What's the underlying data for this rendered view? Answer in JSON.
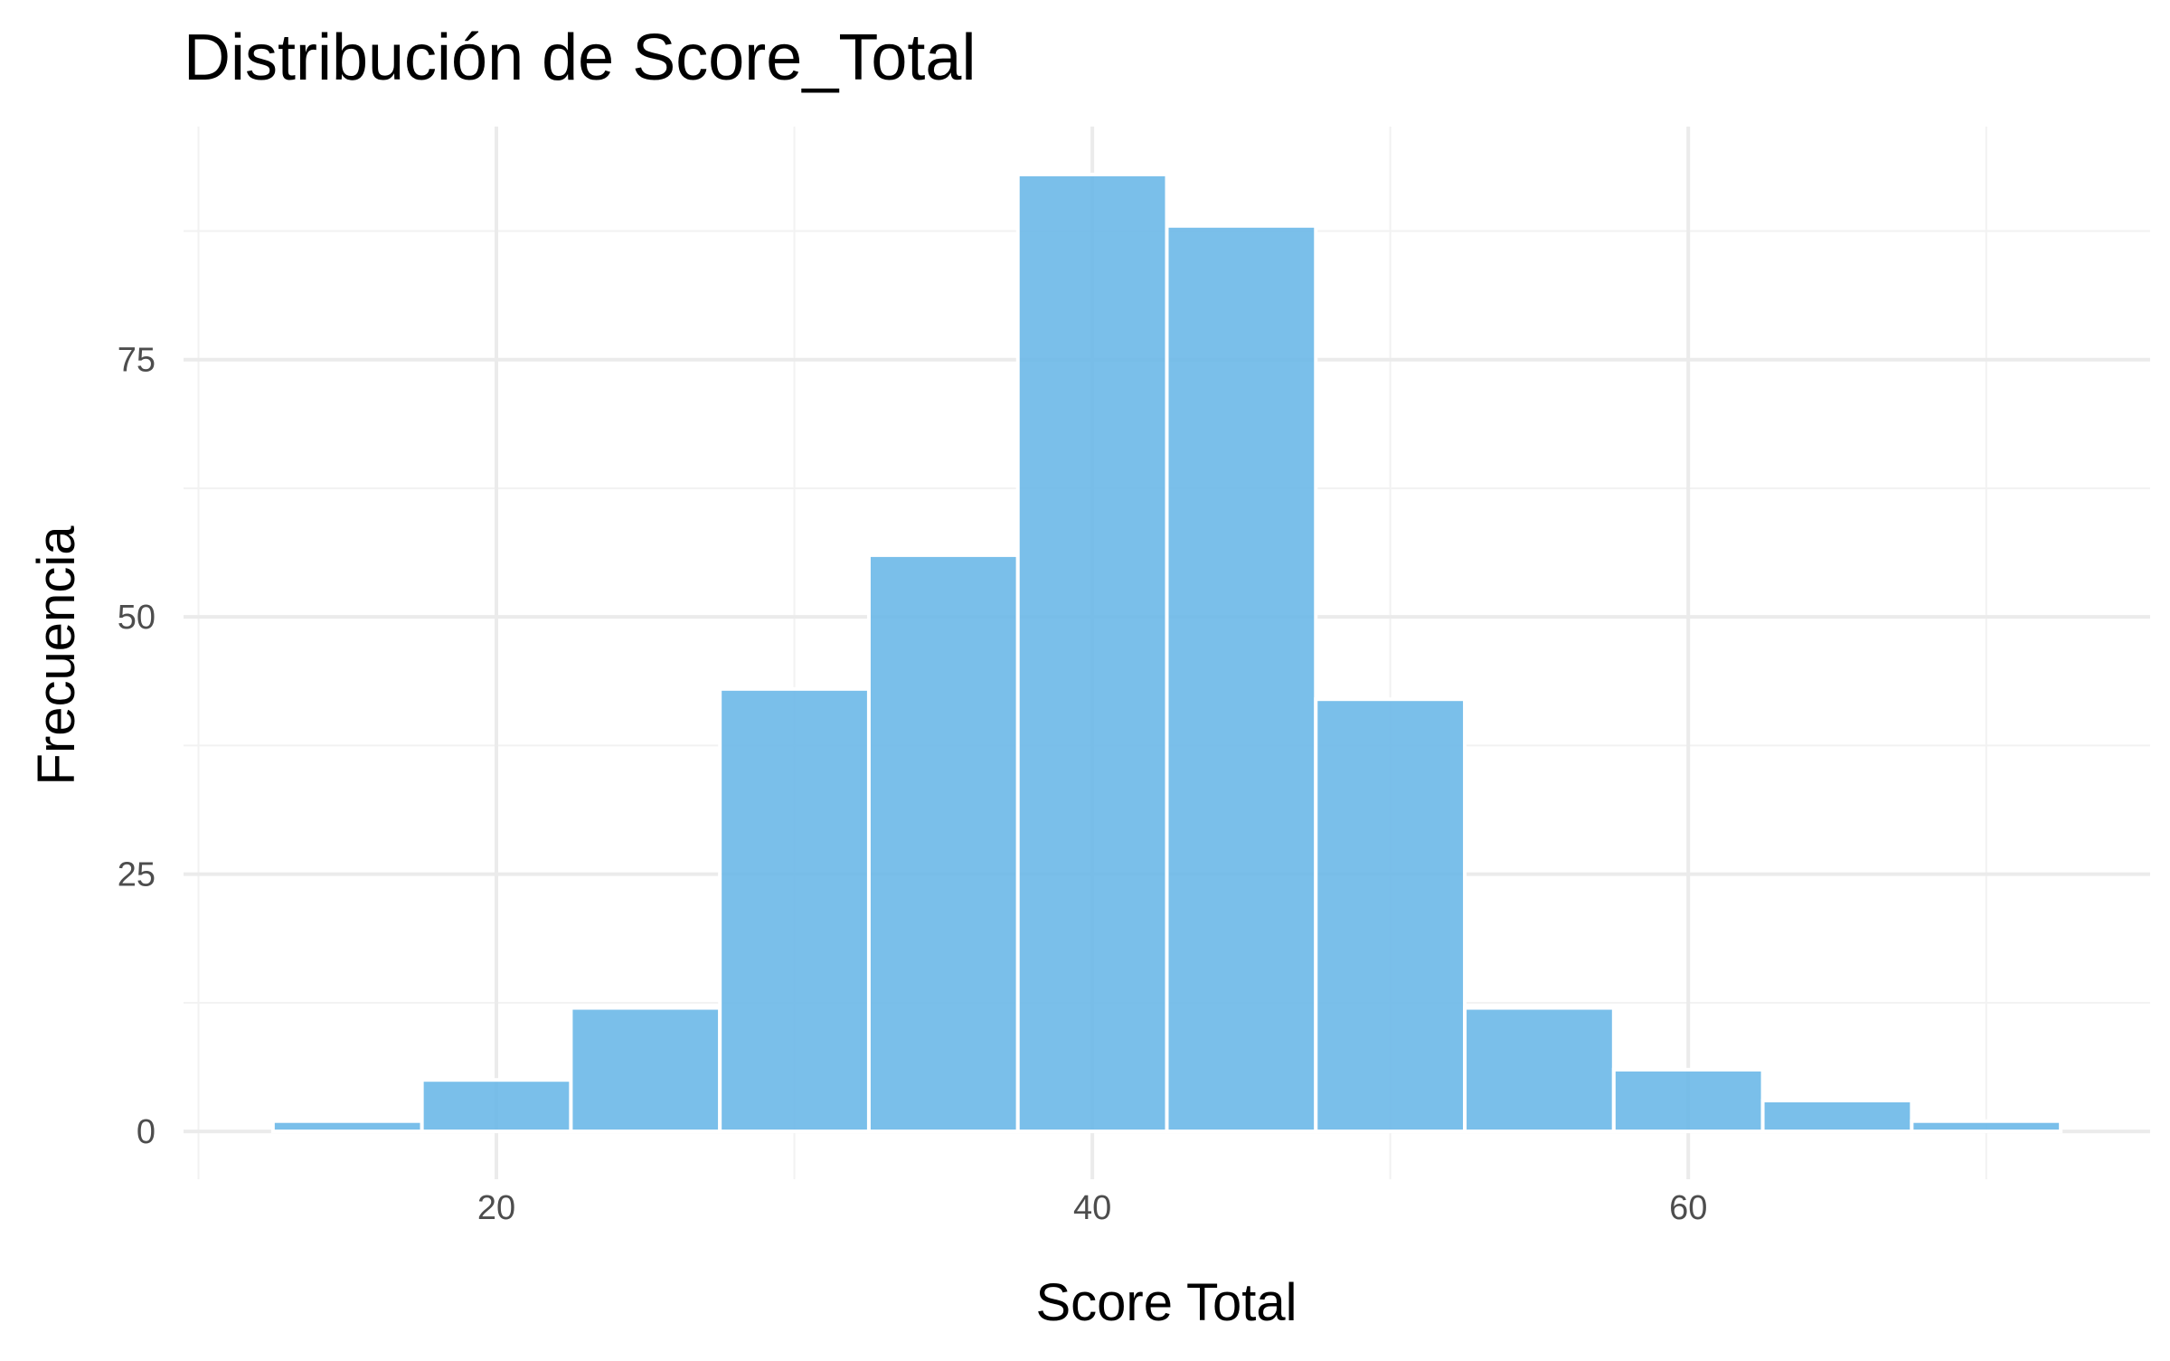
{
  "chart_data": {
    "type": "bar",
    "title": "Distribución de Score_Total",
    "xlabel": "Score Total",
    "ylabel": "Frecuencia",
    "bin_width": 5,
    "bins": [
      {
        "x_start": 12.5,
        "x_end": 17.5,
        "count": 1
      },
      {
        "x_start": 17.5,
        "x_end": 22.5,
        "count": 5
      },
      {
        "x_start": 22.5,
        "x_end": 27.5,
        "count": 12
      },
      {
        "x_start": 27.5,
        "x_end": 32.5,
        "count": 43
      },
      {
        "x_start": 32.5,
        "x_end": 37.5,
        "count": 56
      },
      {
        "x_start": 37.5,
        "x_end": 42.5,
        "count": 93
      },
      {
        "x_start": 42.5,
        "x_end": 47.5,
        "count": 88
      },
      {
        "x_start": 47.5,
        "x_end": 52.5,
        "count": 42
      },
      {
        "x_start": 52.5,
        "x_end": 57.5,
        "count": 12
      },
      {
        "x_start": 57.5,
        "x_end": 62.5,
        "count": 6
      },
      {
        "x_start": 62.5,
        "x_end": 67.5,
        "count": 3
      },
      {
        "x_start": 67.5,
        "x_end": 72.5,
        "count": 1
      }
    ],
    "xlim": [
      9.5,
      75.5
    ],
    "ylim": [
      -4.65,
      97.65
    ],
    "x_ticks": [
      20,
      40,
      60
    ],
    "x_tick_labels": [
      "20",
      "40",
      "60"
    ],
    "y_ticks": [
      0,
      25,
      50,
      75
    ],
    "y_tick_labels": [
      "0",
      "25",
      "50",
      "75"
    ],
    "x_minor": [
      10,
      30,
      50,
      70
    ],
    "y_minor": [
      12.5,
      37.5,
      62.5,
      87.5
    ],
    "grid": true,
    "legend": "none",
    "colors": {
      "bar_fill": "#6BB8E8",
      "bar_opacity": 0.9,
      "bar_stroke": "#ffffff",
      "grid_major": "#EBEBEB",
      "grid_minor": "#F2F2F2",
      "tick_text": "#4D4D4D",
      "title_text": "#000000"
    }
  }
}
